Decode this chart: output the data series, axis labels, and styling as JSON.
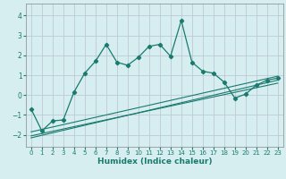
{
  "xlabel": "Humidex (Indice chaleur)",
  "background_color": "#d6eef0",
  "grid_color": "#c0c8d8",
  "line_color": "#1a7a6e",
  "xlim": [
    -0.5,
    23.5
  ],
  "ylim": [
    -2.6,
    4.6
  ],
  "yticks": [
    -2,
    -1,
    0,
    1,
    2,
    3,
    4
  ],
  "xticks": [
    0,
    1,
    2,
    3,
    4,
    5,
    6,
    7,
    8,
    9,
    10,
    11,
    12,
    13,
    14,
    15,
    16,
    17,
    18,
    19,
    20,
    21,
    22,
    23
  ],
  "main_x": [
    0,
    1,
    2,
    3,
    4,
    5,
    6,
    7,
    8,
    9,
    10,
    11,
    12,
    13,
    14,
    15,
    16,
    17,
    18,
    19,
    20,
    21,
    22,
    23
  ],
  "main_y": [
    -0.7,
    -1.8,
    -1.3,
    -1.25,
    0.15,
    1.1,
    1.7,
    2.55,
    1.65,
    1.5,
    1.9,
    2.45,
    2.55,
    1.95,
    3.75,
    1.65,
    1.2,
    1.1,
    0.65,
    -0.15,
    0.05,
    0.5,
    0.75,
    0.85
  ],
  "line1_x": [
    0,
    23
  ],
  "line1_y": [
    -2.15,
    0.75
  ],
  "line2_x": [
    0,
    23
  ],
  "line2_y": [
    -2.05,
    0.6
  ],
  "line3_x": [
    0,
    23
  ],
  "line3_y": [
    -1.85,
    0.95
  ]
}
